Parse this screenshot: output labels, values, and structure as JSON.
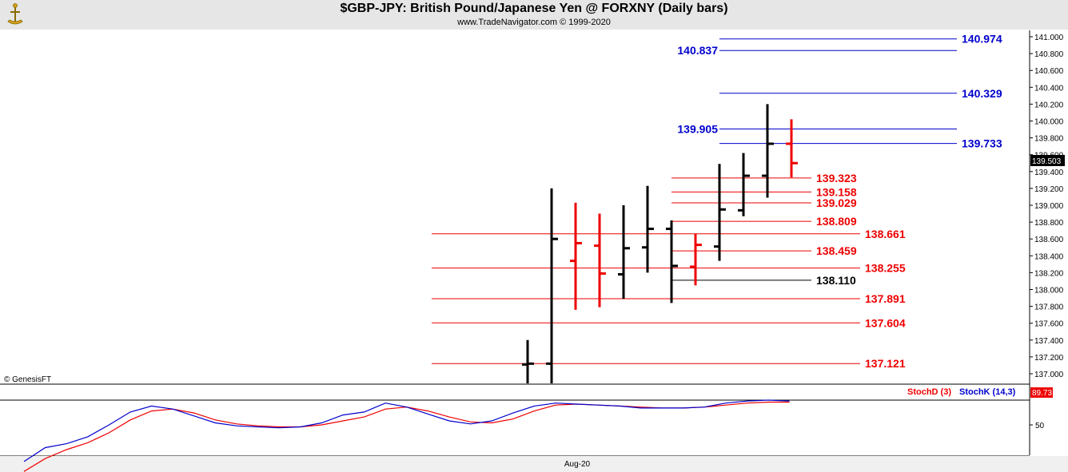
{
  "header": {
    "title": "$GBP-JPY:  British Pound/Japanese Yen @ FORXNY  (Daily bars)",
    "subtitle": "www.TradeNavigator.com © 1999-2020"
  },
  "copyright_label": "© GenesisFT",
  "colors": {
    "up_bar": "#000000",
    "down_bar": "#ee0000",
    "blue_level": "#0000cc",
    "red_level": "#ee0000",
    "stoch_k": "#0000cc",
    "stoch_d": "#ee0000",
    "header_bg": "#e6e6e6"
  },
  "chart_data": {
    "type": "ohlc",
    "title": "$GBP-JPY:  British Pound/Japanese Yen @ FORXNY  (Daily bars)",
    "xlabel": "Aug-20",
    "ylim": [
      136.88,
      141.1
    ],
    "y_ticks": [
      "141.000",
      "140.800",
      "140.600",
      "140.400",
      "140.200",
      "140.000",
      "139.800",
      "139.600",
      "139.400",
      "139.200",
      "139.000",
      "138.800",
      "138.600",
      "138.400",
      "138.200",
      "138.000",
      "137.800",
      "137.600",
      "137.400",
      "137.200",
      "137.000"
    ],
    "last_price": "139.503",
    "bars": [
      {
        "o": 137.11,
        "h": 137.4,
        "l": 136.85,
        "c": 137.12,
        "color": "black"
      },
      {
        "o": 137.12,
        "h": 139.2,
        "l": 136.85,
        "c": 138.6,
        "color": "black"
      },
      {
        "o": 138.34,
        "h": 139.03,
        "l": 137.76,
        "c": 138.55,
        "color": "red"
      },
      {
        "o": 138.52,
        "h": 138.9,
        "l": 137.79,
        "c": 138.19,
        "color": "red"
      },
      {
        "o": 138.18,
        "h": 139.0,
        "l": 137.89,
        "c": 138.49,
        "color": "black"
      },
      {
        "o": 138.5,
        "h": 139.23,
        "l": 138.2,
        "c": 138.72,
        "color": "black"
      },
      {
        "o": 138.72,
        "h": 138.82,
        "l": 137.84,
        "c": 138.28,
        "color": "black"
      },
      {
        "o": 138.27,
        "h": 138.66,
        "l": 138.05,
        "c": 138.53,
        "color": "red"
      },
      {
        "o": 138.51,
        "h": 139.49,
        "l": 138.34,
        "c": 138.95,
        "color": "black"
      },
      {
        "o": 138.94,
        "h": 139.62,
        "l": 138.87,
        "c": 139.35,
        "color": "black"
      },
      {
        "o": 139.35,
        "h": 140.2,
        "l": 139.09,
        "c": 139.73,
        "color": "black"
      },
      {
        "o": 139.73,
        "h": 140.02,
        "l": 139.33,
        "c": 139.5,
        "color": "red"
      }
    ],
    "levels_blue": [
      {
        "value": 140.974,
        "label": "140.974"
      },
      {
        "value": 140.837,
        "label": "140.837"
      },
      {
        "value": 140.329,
        "label": "140.329"
      },
      {
        "value": 139.905,
        "label": "139.905"
      },
      {
        "value": 139.733,
        "label": "139.733"
      }
    ],
    "levels_red": [
      {
        "value": 139.323,
        "label": "139.323"
      },
      {
        "value": 139.158,
        "label": "139.158"
      },
      {
        "value": 139.029,
        "label": "139.029"
      },
      {
        "value": 138.809,
        "label": "138.809"
      },
      {
        "value": 138.661,
        "label": "138.661"
      },
      {
        "value": 138.459,
        "label": "138.459"
      },
      {
        "value": 138.255,
        "label": "138.255"
      },
      {
        "value": 137.891,
        "label": "137.891"
      },
      {
        "value": 137.604,
        "label": "137.604"
      },
      {
        "value": 137.121,
        "label": "137.121"
      }
    ],
    "level_black": {
      "value": 138.11,
      "label": "138.110"
    },
    "stochastic": {
      "ylim": [
        0,
        100
      ],
      "y_ticks": [
        "50"
      ],
      "d_label": "StochD (3)",
      "k_label": "StochK (14,3)",
      "last_value": "89.73",
      "stoch_k": [
        13,
        27,
        31,
        38,
        50,
        63,
        69,
        66,
        59,
        52,
        49,
        48,
        47,
        48,
        52,
        60,
        63,
        72,
        68,
        61,
        54,
        51,
        54,
        62,
        69,
        72,
        71,
        70,
        69,
        67,
        67,
        67,
        68,
        72,
        74,
        75,
        74
      ],
      "stoch_d": [
        3,
        16,
        25,
        32,
        42,
        55,
        64,
        66,
        62,
        55,
        51,
        49,
        48,
        48,
        50,
        54,
        58,
        66,
        68,
        64,
        58,
        53,
        52,
        56,
        64,
        70,
        71,
        70,
        69,
        68,
        67,
        67,
        68,
        70,
        72,
        73,
        73
      ]
    }
  }
}
